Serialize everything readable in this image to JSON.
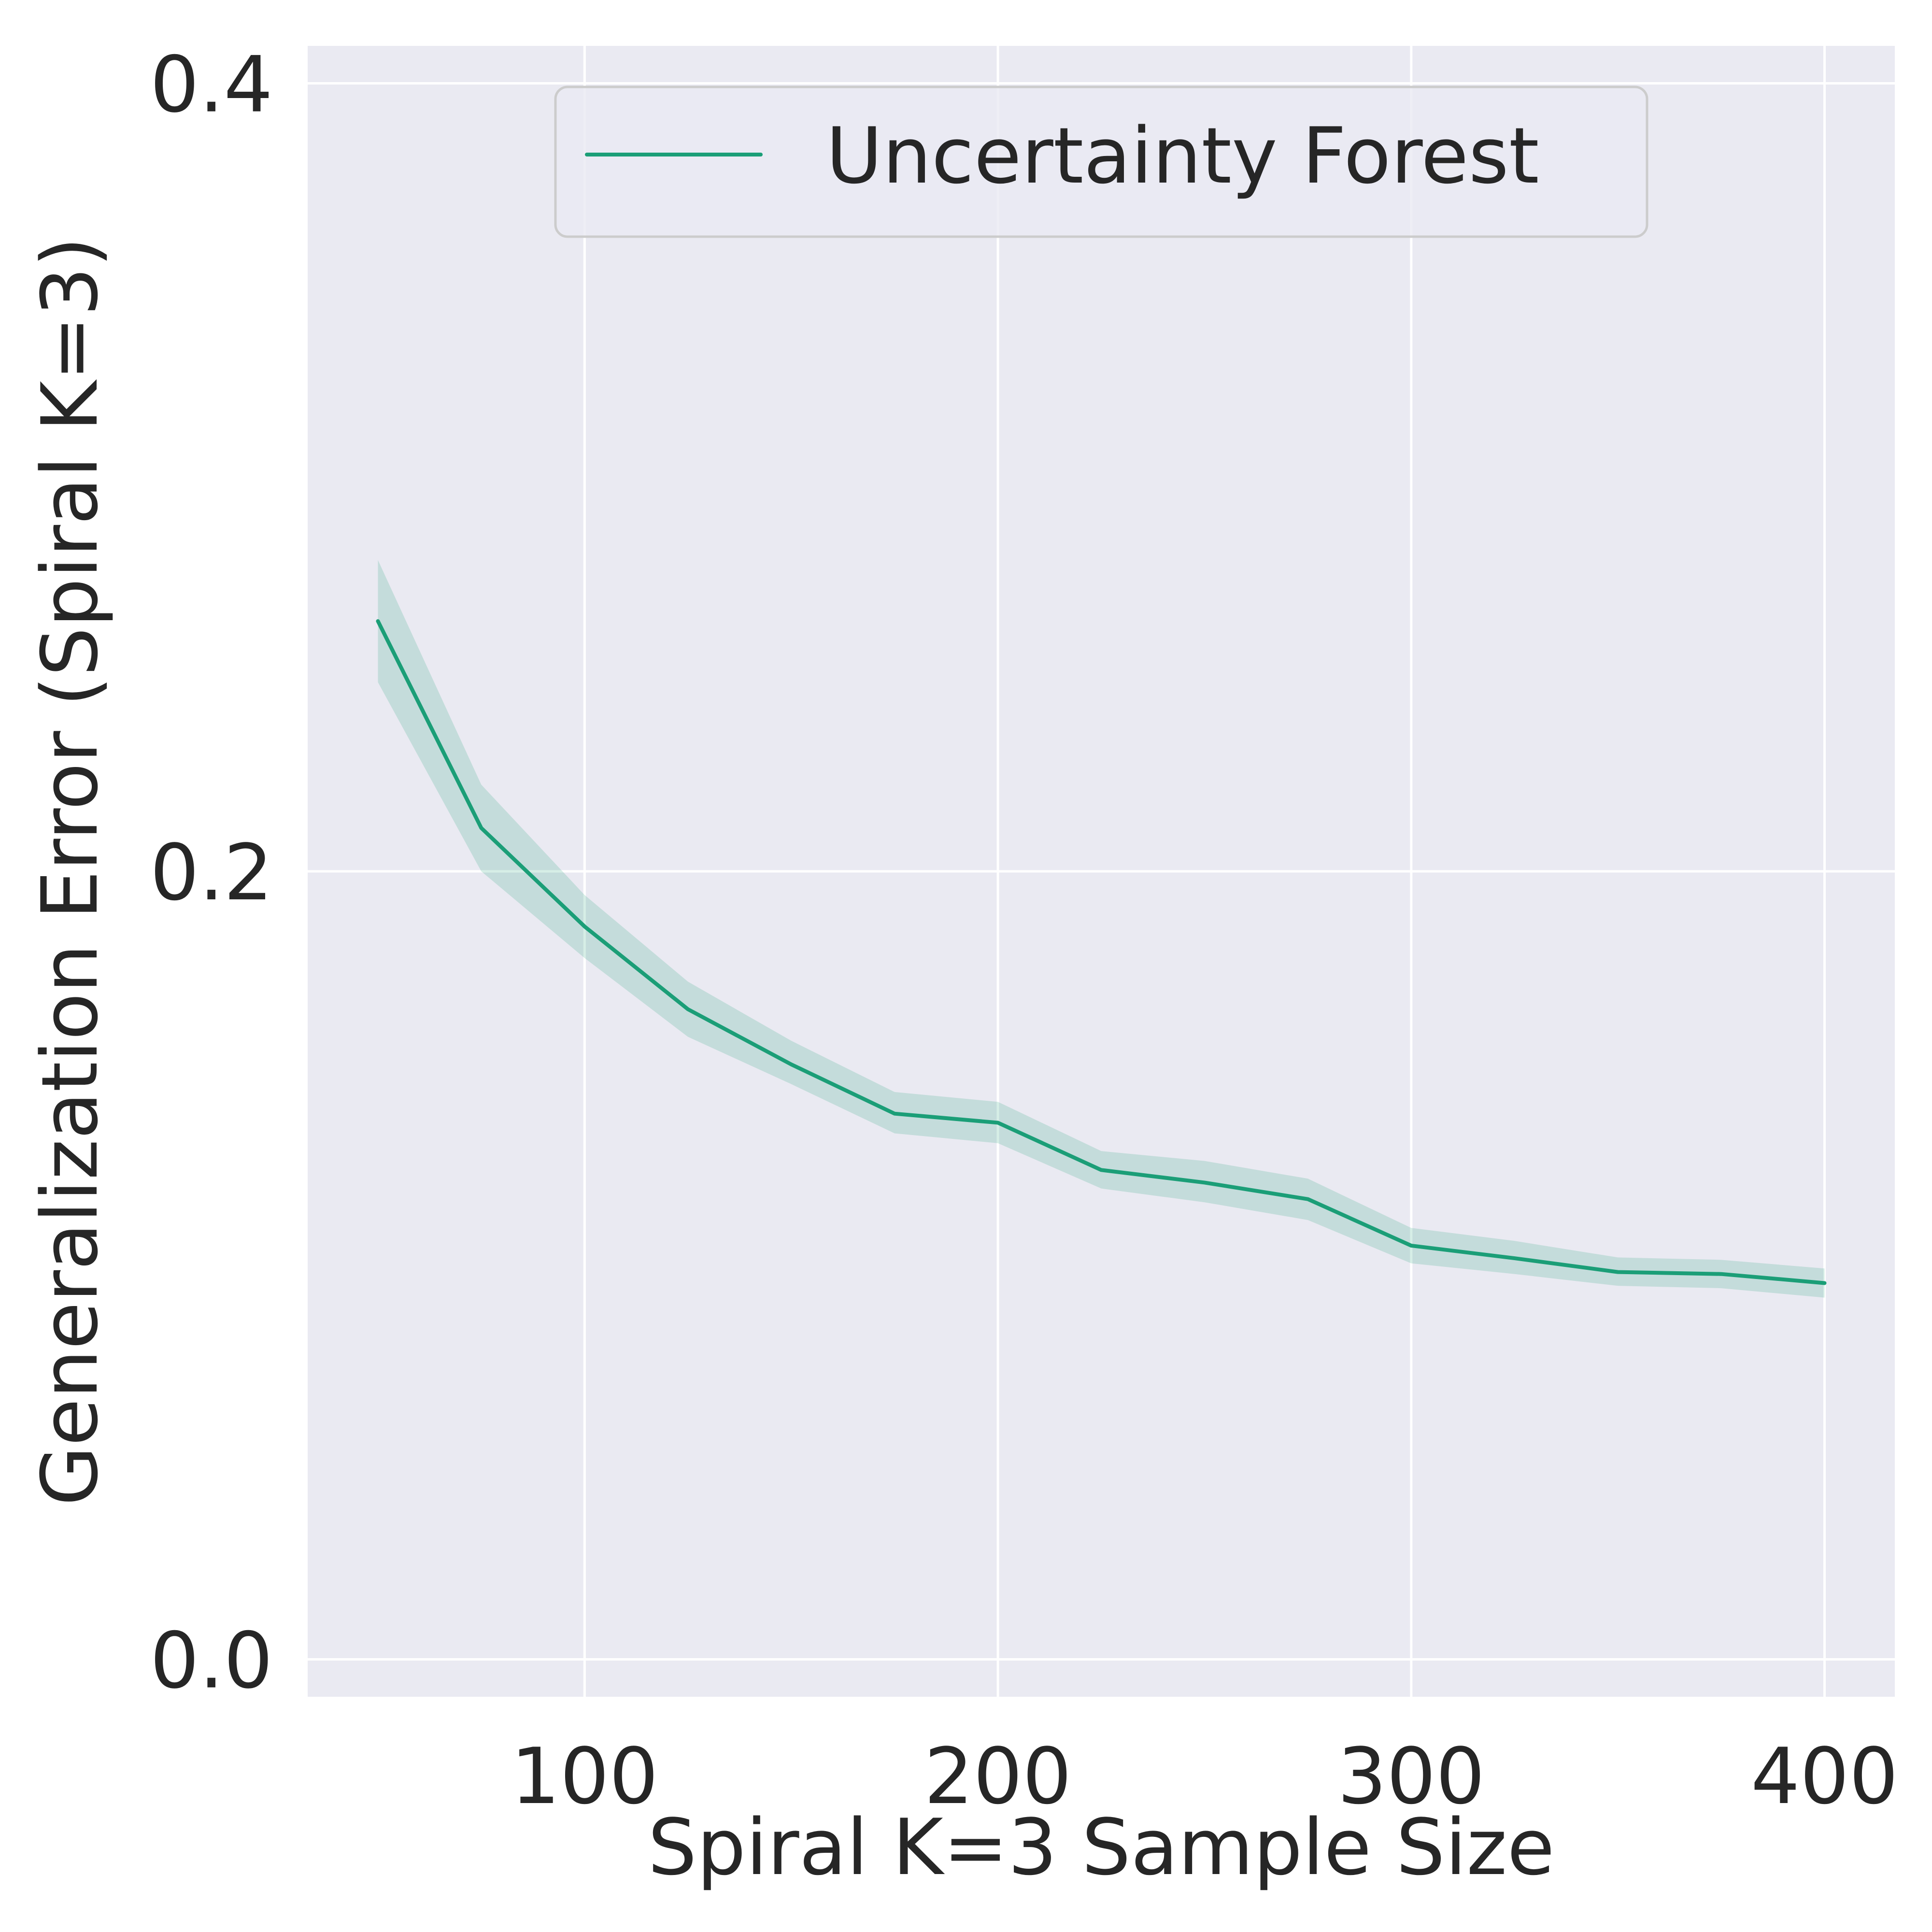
{
  "chart_data": {
    "type": "line",
    "xlabel": "Spiral K=3 Sample Size",
    "ylabel": "Generalization Error (Spiral K=3)",
    "xlim": [
      33,
      417
    ],
    "ylim": [
      -0.0095,
      0.4095
    ],
    "x_ticks": [
      100,
      200,
      300,
      400
    ],
    "x_tick_labels": [
      "100",
      "200",
      "300",
      "400"
    ],
    "y_ticks": [
      0.0,
      0.2,
      0.4
    ],
    "y_tick_labels": [
      "0.0",
      "0.2",
      "0.4"
    ],
    "grid": true,
    "legend_placement": "upper center",
    "series": [
      {
        "name": "Uncertainty Forest",
        "color": "#1b9e77",
        "band_color": "#1b9e77",
        "x": [
          50,
          75,
          100,
          125,
          150,
          175,
          200,
          225,
          250,
          275,
          300,
          325,
          350,
          375,
          400
        ],
        "y": [
          0.2635,
          0.211,
          0.186,
          0.165,
          0.151,
          0.1385,
          0.1362,
          0.1242,
          0.121,
          0.1168,
          0.105,
          0.1018,
          0.0983,
          0.0978,
          0.0955
        ],
        "lower": [
          0.248,
          0.2,
          0.178,
          0.158,
          0.146,
          0.1335,
          0.131,
          0.1195,
          0.116,
          0.1115,
          0.1005,
          0.0978,
          0.0948,
          0.0942,
          0.0918
        ],
        "upper": [
          0.279,
          0.222,
          0.194,
          0.172,
          0.157,
          0.144,
          0.1415,
          0.129,
          0.1265,
          0.122,
          0.1095,
          0.1062,
          0.102,
          0.1014,
          0.0992
        ]
      }
    ]
  }
}
